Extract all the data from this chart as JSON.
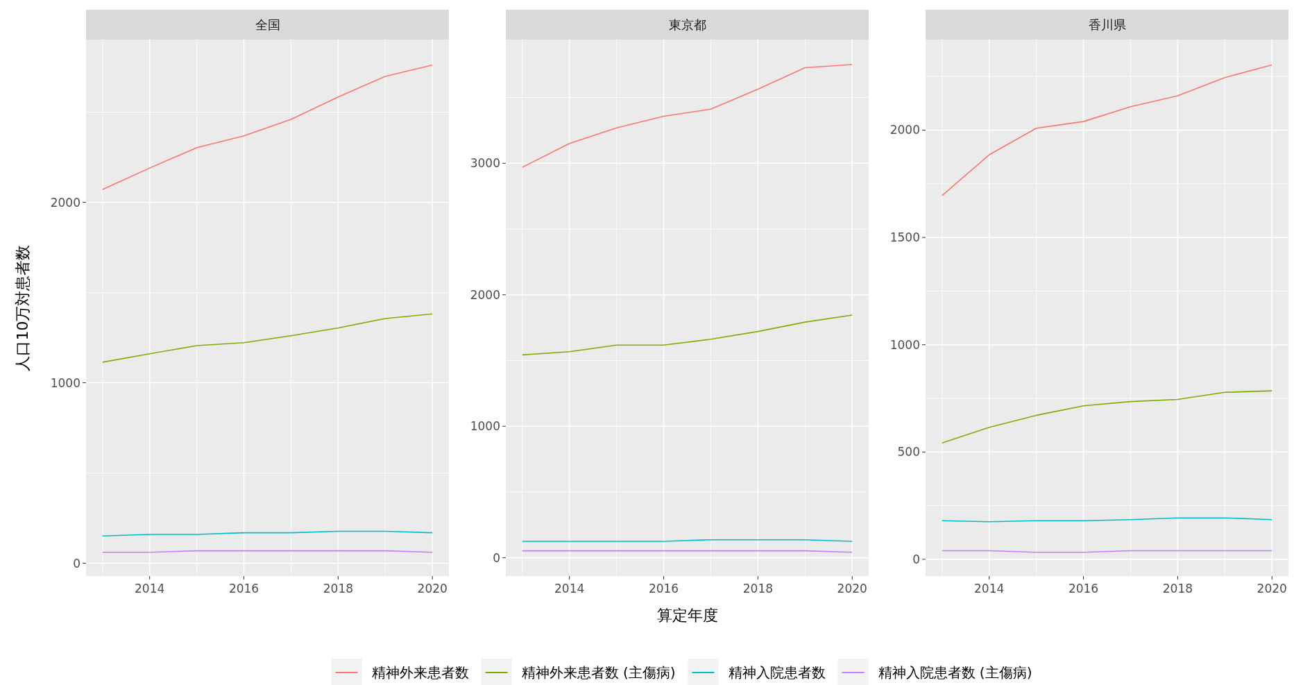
{
  "chart_data": [
    {
      "type": "line",
      "title": "全国",
      "ylabel": "人口10万対患者数",
      "legend": "bottom",
      "grid": true,
      "x": [
        2013,
        2014,
        2015,
        2016,
        2017,
        2018,
        2019,
        2020
      ],
      "xlim": [
        2012.65,
        2020.35
      ],
      "xticks": [
        {
          "value": 2013,
          "label": null
        },
        2014,
        {
          "value": 2015,
          "label": null
        },
        2016,
        {
          "value": 2017,
          "label": null
        },
        2018,
        {
          "value": 2019,
          "label": null
        },
        2020
      ],
      "ylim": [
        -71,
        2902
      ],
      "yticks": [
        0,
        {
          "value": 500,
          "label": null
        },
        1000,
        {
          "value": 1500,
          "label": null
        },
        2000,
        {
          "value": 2500,
          "label": null
        }
      ],
      "series": [
        {
          "name": "精神外来患者数",
          "color": "#f8766d",
          "values": [
            2071,
            2190,
            2303,
            2368,
            2460,
            2584,
            2698,
            2761
          ]
        },
        {
          "name": "精神外来患者数 (主傷病)",
          "color": "#7cae00",
          "values": [
            1114,
            1161,
            1206,
            1222,
            1261,
            1304,
            1356,
            1382
          ]
        },
        {
          "name": "精神入院患者数",
          "color": "#00bfc4",
          "values": [
            151,
            160,
            160,
            169,
            169,
            177,
            177,
            169
          ]
        },
        {
          "name": "精神入院患者数 (主傷病)",
          "color": "#c77cff",
          "values": [
            61,
            61,
            69,
            69,
            69,
            69,
            69,
            61
          ]
        }
      ]
    },
    {
      "type": "line",
      "title": "東京都",
      "xlabel": "算定年度",
      "grid": true,
      "x": [
        2013,
        2014,
        2015,
        2016,
        2017,
        2018,
        2019,
        2020
      ],
      "xlim": [
        2012.65,
        2020.35
      ],
      "xticks": [
        {
          "value": 2013,
          "label": null
        },
        2014,
        {
          "value": 2015,
          "label": null
        },
        2016,
        {
          "value": 2017,
          "label": null
        },
        2018,
        {
          "value": 2019,
          "label": null
        },
        2020
      ],
      "ylim": [
        -139,
        3941
      ],
      "yticks": [
        0,
        {
          "value": 500,
          "label": null
        },
        1000,
        {
          "value": 1500,
          "label": null
        },
        2000,
        {
          "value": 2500,
          "label": null
        },
        3000,
        {
          "value": 3500,
          "label": null
        }
      ],
      "series": [
        {
          "color": "#f8766d",
          "values": [
            2970,
            3151,
            3269,
            3358,
            3412,
            3564,
            3727,
            3751
          ]
        },
        {
          "color": "#7cae00",
          "values": [
            1543,
            1567,
            1617,
            1617,
            1662,
            1721,
            1792,
            1846
          ]
        },
        {
          "color": "#00bfc4",
          "values": [
            125,
            125,
            125,
            125,
            137,
            137,
            137,
            125
          ]
        },
        {
          "color": "#c77cff",
          "values": [
            53,
            53,
            53,
            53,
            53,
            53,
            53,
            42
          ]
        }
      ]
    },
    {
      "type": "line",
      "title": "香川県",
      "grid": true,
      "x": [
        2013,
        2014,
        2015,
        2016,
        2017,
        2018,
        2019,
        2020
      ],
      "xlim": [
        2012.65,
        2020.35
      ],
      "xticks": [
        {
          "value": 2013,
          "label": null
        },
        2014,
        {
          "value": 2015,
          "label": null
        },
        2016,
        {
          "value": 2017,
          "label": null
        },
        2018,
        {
          "value": 2019,
          "label": null
        },
        2020
      ],
      "ylim": [
        -78,
        2422
      ],
      "yticks": [
        0,
        {
          "value": 250,
          "label": null
        },
        500,
        {
          "value": 750,
          "label": null
        },
        1000,
        {
          "value": 1250,
          "label": null
        },
        1500,
        {
          "value": 1750,
          "label": null
        },
        2000,
        {
          "value": 2250,
          "label": null
        }
      ],
      "series": [
        {
          "color": "#f8766d",
          "values": [
            1695,
            1885,
            2009,
            2040,
            2109,
            2160,
            2245,
            2304
          ]
        },
        {
          "color": "#7cae00",
          "values": [
            542,
            615,
            671,
            715,
            735,
            745,
            778,
            785
          ]
        },
        {
          "color": "#00bfc4",
          "values": [
            180,
            175,
            180,
            180,
            185,
            193,
            193,
            185
          ]
        },
        {
          "color": "#c77cff",
          "values": [
            40,
            40,
            33,
            33,
            40,
            40,
            40,
            40
          ]
        }
      ]
    }
  ]
}
